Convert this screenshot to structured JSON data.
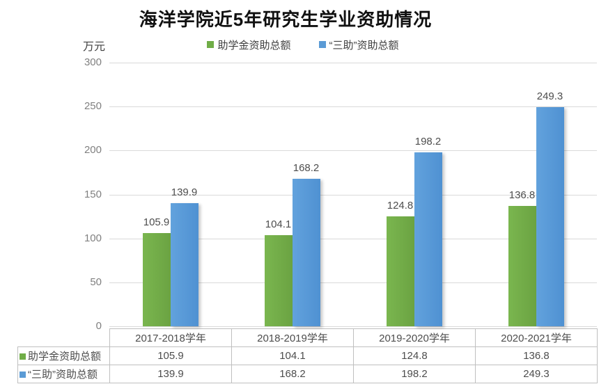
{
  "title": "海洋学院近5年研究生学业资助情况",
  "unit_label": "万元",
  "colors": {
    "series_green": "#70ad47",
    "series_blue": "#5b9bd5",
    "gridline": "#d9d9d9",
    "table_border": "#bfbfbf",
    "tick_text": "#808080",
    "label_text": "#4d4d4d",
    "title_text": "#111111"
  },
  "legend": {
    "items": [
      {
        "label": "助学金资助总额",
        "color": "#70ad47"
      },
      {
        "label": "“三助”资助总额",
        "color": "#5b9bd5"
      }
    ]
  },
  "chart_data": {
    "type": "bar",
    "title": "海洋学院近5年研究生学业资助情况",
    "ylabel": "万元",
    "categories": [
      "2017-2018学年",
      "2018-2019学年",
      "2019-2020学年",
      "2020-2021学年"
    ],
    "series": [
      {
        "name": "助学金资助总额",
        "color": "#70ad47",
        "values": [
          105.9,
          104.1,
          124.8,
          136.8
        ]
      },
      {
        "name": "“三助”资助总额",
        "color": "#5b9bd5",
        "values": [
          139.9,
          168.2,
          198.2,
          249.3
        ]
      }
    ],
    "ylim": [
      0,
      300
    ],
    "yticks": [
      0,
      50,
      100,
      150,
      200,
      250,
      300
    ],
    "grid": true,
    "legend_position": "top",
    "data_table": true,
    "data_labels": true
  }
}
